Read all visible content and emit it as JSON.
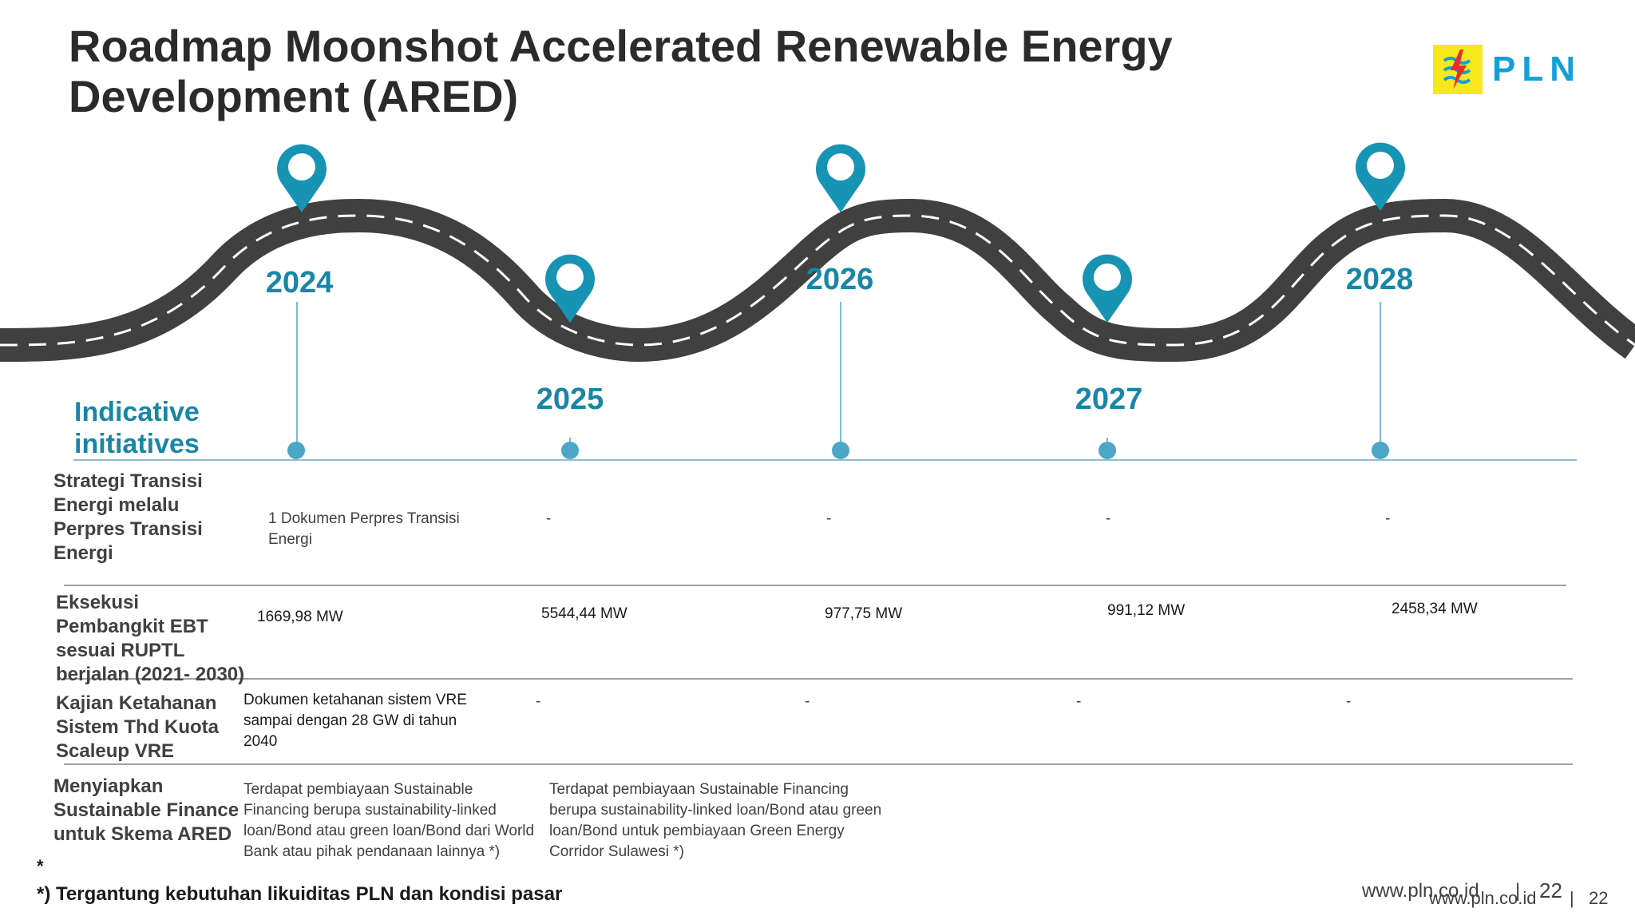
{
  "title": "Roadmap Moonshot Accelerated Renewable Energy Development (ARED)",
  "logo": {
    "text": "PLN",
    "brand_color": "#139fd8",
    "mark_color": "#f7e81e"
  },
  "colors": {
    "accent": "#1886a6",
    "pin": "#1793b4",
    "road": "#404040",
    "dot": "#4ba6c8"
  },
  "years": [
    "2024",
    "2025",
    "2026",
    "2027",
    "2028"
  ],
  "indicative_label": "Indicative initiatives",
  "rows": [
    {
      "label": "Strategi Transisi Energi melalu Perpres Transisi Energi",
      "cells": [
        "1 Dokumen Perpres Transisi Energi",
        "-",
        "-",
        "-",
        "-"
      ]
    },
    {
      "label": "Eksekusi Pembangkit EBT sesuai RUPTL berjalan (2021- 2030)",
      "cells": [
        "1669,98 MW",
        "5544,44 MW",
        "977,75 MW",
        "991,12 MW",
        "2458,34 MW"
      ]
    },
    {
      "label": "Kajian Ketahanan Sistem Thd Kuota Scaleup VRE",
      "cells": [
        "Dokumen ketahanan sistem VRE sampai dengan 28 GW di tahun 2040",
        "-",
        "-",
        "-",
        "-"
      ]
    },
    {
      "label": "Menyiapkan Sustainable Finance untuk Skema ARED",
      "cells": [
        "Terdapat pembiayaan Sustainable Financing berupa sustainability-linked loan/Bond atau green loan/Bond dari World Bank atau pihak pendanaan lainnya *)",
        "Terdapat pembiayaan Sustainable Financing berupa sustainability-linked loan/Bond atau green loan/Bond untuk pembiayaan Green Energy Corridor Sulawesi *)"
      ]
    }
  ],
  "footnote_star": "*",
  "footnote": "*) Tergantung kebutuhan likuiditas PLN dan kondisi pasar",
  "footer": {
    "website": "www.pln.co.id",
    "separator": "|",
    "page": "22"
  }
}
